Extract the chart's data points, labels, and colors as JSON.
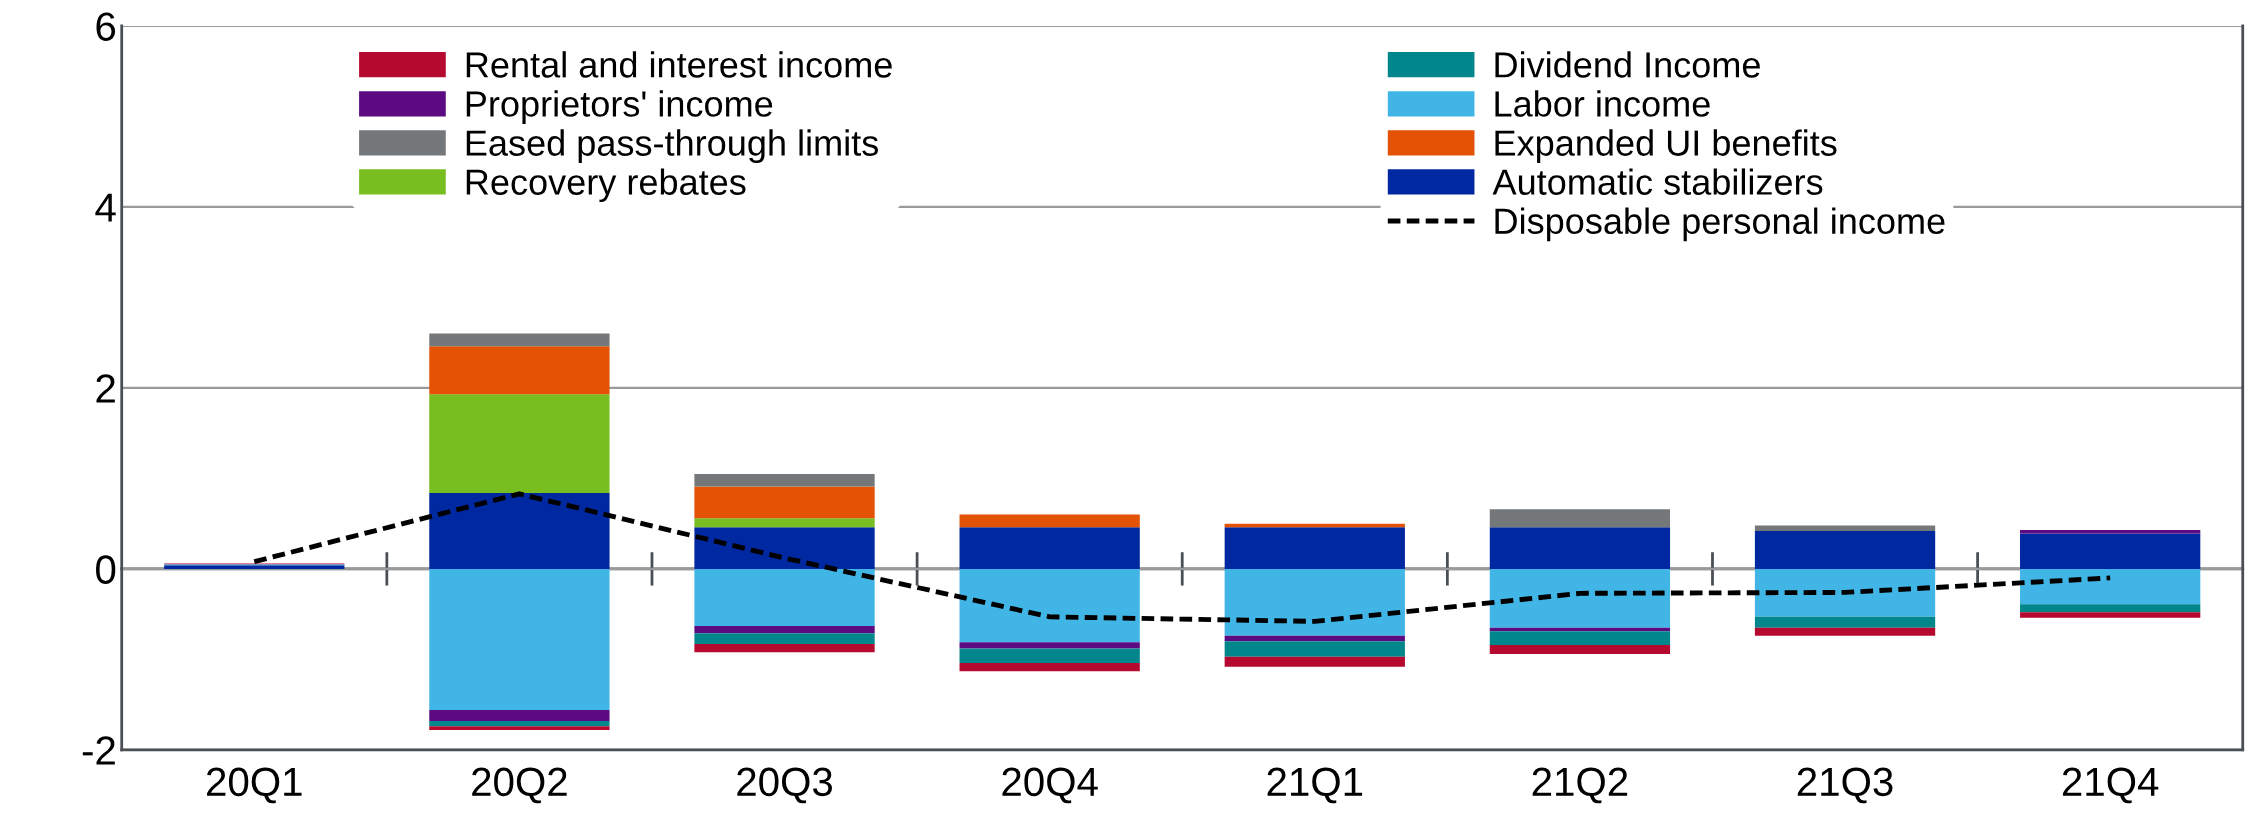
{
  "chart_data": {
    "type": "bar",
    "stacked": true,
    "categories": [
      "20Q1",
      "20Q2",
      "20Q3",
      "20Q4",
      "21Q1",
      "21Q2",
      "21Q3",
      "21Q4"
    ],
    "series": [
      {
        "name": "Automatic stabilizers",
        "color": "#0028a0",
        "values": [
          0.04,
          0.84,
          0.46,
          0.46,
          0.46,
          0.46,
          0.42,
          0.39
        ]
      },
      {
        "name": "Recovery rebates",
        "color": "#78be20",
        "values": [
          0,
          1.09,
          0.1,
          0,
          0,
          0,
          0,
          0
        ]
      },
      {
        "name": "Expanded UI benefits",
        "color": "#e35205",
        "values": [
          0,
          0.53,
          0.35,
          0.14,
          0.04,
          0,
          0,
          0
        ]
      },
      {
        "name": "Eased pass-through limits",
        "color": "#75787b",
        "values": [
          0,
          0.14,
          0.14,
          0,
          0,
          0.2,
          0.06,
          0
        ]
      },
      {
        "name": "Labor income",
        "color": "#41b6e6",
        "values": [
          0.01,
          -1.56,
          -0.63,
          -0.81,
          -0.74,
          -0.65,
          -0.53,
          -0.39
        ]
      },
      {
        "name": "Proprietors' income",
        "color": "#5c0a82",
        "values": [
          0,
          -0.12,
          -0.08,
          -0.07,
          -0.06,
          -0.04,
          0,
          0.04
        ]
      },
      {
        "name": "Dividend Income",
        "color": "#00868b",
        "values": [
          0,
          -0.06,
          -0.12,
          -0.16,
          -0.17,
          -0.15,
          -0.12,
          -0.09
        ]
      },
      {
        "name": "Rental and interest income",
        "color": "#b5092f",
        "values": [
          0.01,
          -0.04,
          -0.09,
          -0.09,
          -0.11,
          -0.1,
          -0.09,
          -0.06
        ]
      },
      {
        "name": "Disposable personal income",
        "type": "line",
        "color": "#000000",
        "line_style": "dashed",
        "values": [
          0.08,
          0.83,
          0.12,
          -0.53,
          -0.58,
          -0.27,
          -0.26,
          -0.1
        ]
      }
    ],
    "ylim": [
      -2,
      6
    ],
    "yticks": [
      -2,
      0,
      2,
      4,
      6
    ],
    "grid": "y",
    "legend": "top"
  }
}
